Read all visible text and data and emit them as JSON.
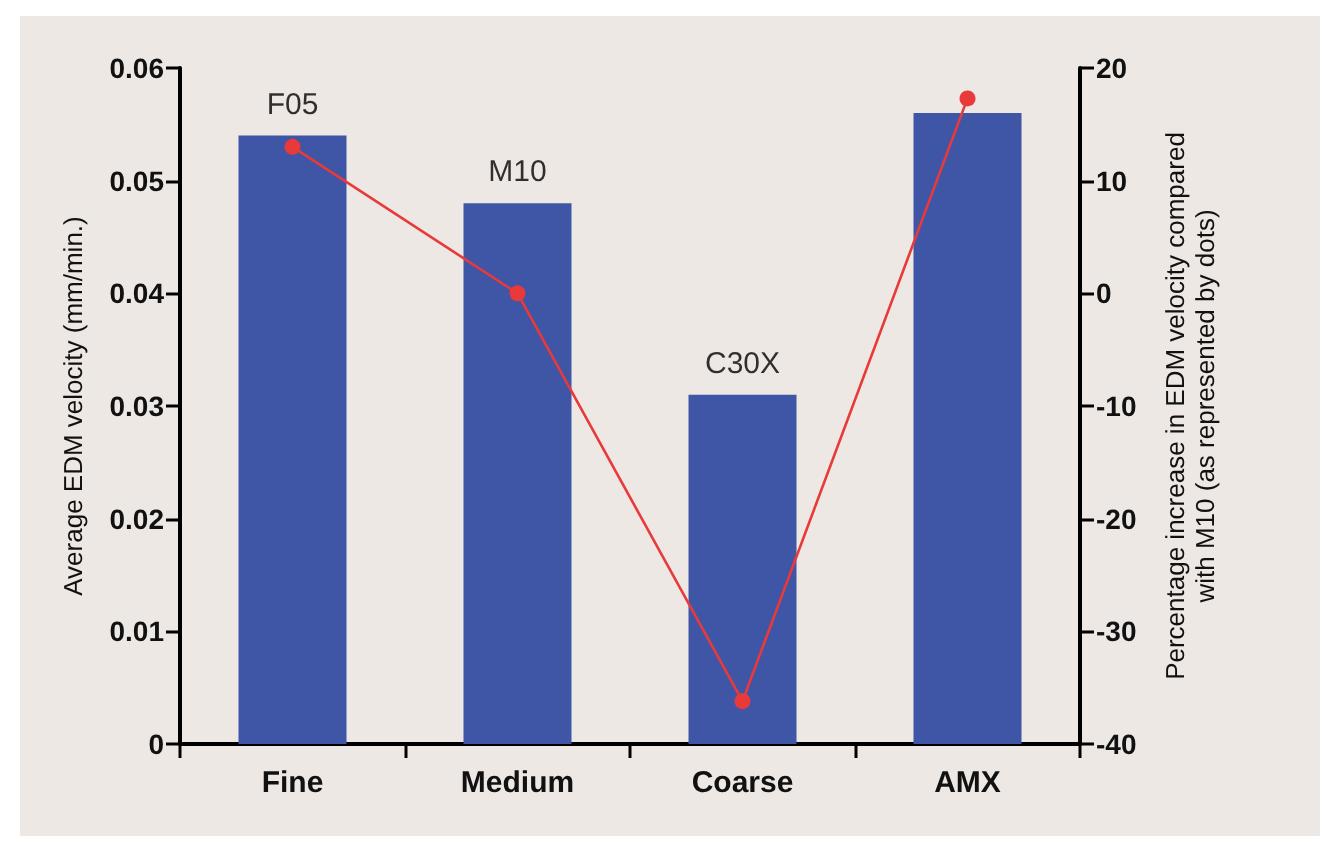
{
  "chart_data": {
    "type": "bar",
    "categories": [
      "Fine",
      "Medium",
      "Coarse",
      "AMX"
    ],
    "ylabel": "Average EDM velocity (mm/min.)",
    "y2label": "Percentage increase in EDM velocity compared\nwith M10 (as represented by dots)",
    "series": [
      {
        "color": "#3f55a5",
        "values": [
          0.054,
          0.048,
          0.031,
          0.056
        ]
      },
      {
        "type": "line",
        "axis": "y2",
        "color": "#e8393b",
        "marker": "circle",
        "values": [
          13,
          0,
          -36.2,
          17.3
        ]
      }
    ],
    "annotations": [
      {
        "text": "F05",
        "x": "Fine",
        "y": 0.054
      },
      {
        "text": "M10",
        "x": "Medium",
        "y": 0.048
      },
      {
        "text": "C30X",
        "x": "Coarse",
        "y": 0.031
      }
    ],
    "ylim": [
      0,
      0.06
    ],
    "yticks": [
      0,
      0.01,
      0.02,
      0.03,
      0.04,
      0.05,
      0.06
    ],
    "y2lim": [
      -40,
      20
    ],
    "y2ticks": [
      -40,
      -30,
      -20,
      -10,
      0,
      10,
      20
    ],
    "grid": false
  }
}
